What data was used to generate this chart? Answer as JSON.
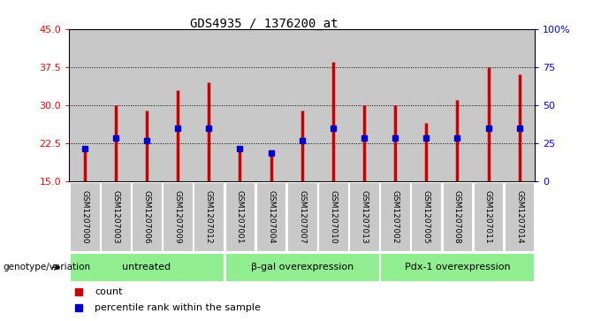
{
  "title": "GDS4935 / 1376200_at",
  "samples": [
    "GSM1207000",
    "GSM1207003",
    "GSM1207006",
    "GSM1207009",
    "GSM1207012",
    "GSM1207001",
    "GSM1207004",
    "GSM1207007",
    "GSM1207010",
    "GSM1207013",
    "GSM1207002",
    "GSM1207005",
    "GSM1207008",
    "GSM1207011",
    "GSM1207014"
  ],
  "count_values": [
    21.0,
    30.0,
    29.0,
    33.0,
    34.5,
    21.0,
    20.0,
    29.0,
    38.5,
    30.0,
    30.0,
    26.5,
    31.0,
    37.5,
    36.0
  ],
  "percentile_values": [
    21.5,
    23.5,
    23.0,
    25.5,
    25.5,
    21.5,
    20.5,
    23.0,
    25.5,
    23.5,
    23.5,
    23.5,
    23.5,
    25.5,
    25.5
  ],
  "y_min": 15,
  "y_max": 45,
  "y_ticks": [
    15,
    22.5,
    30,
    37.5,
    45
  ],
  "right_y_ticks": [
    0,
    25,
    50,
    75,
    100
  ],
  "right_y_labels": [
    "0",
    "25",
    "50",
    "75",
    "100%"
  ],
  "bar_color": "#cc0000",
  "dot_color": "#0000cc",
  "groups": [
    {
      "label": "untreated",
      "indices": [
        0,
        1,
        2,
        3,
        4
      ]
    },
    {
      "label": "β-gal overexpression",
      "indices": [
        5,
        6,
        7,
        8,
        9
      ]
    },
    {
      "label": "Pdx-1 overexpression",
      "indices": [
        10,
        11,
        12,
        13,
        14
      ]
    }
  ],
  "group_bg_color": "#90ee90",
  "sample_bg_color": "#c8c8c8",
  "chart_bg_color": "#ffffff",
  "legend_count_label": "count",
  "legend_pct_label": "percentile rank within the sample",
  "genotype_label": "genotype/variation"
}
